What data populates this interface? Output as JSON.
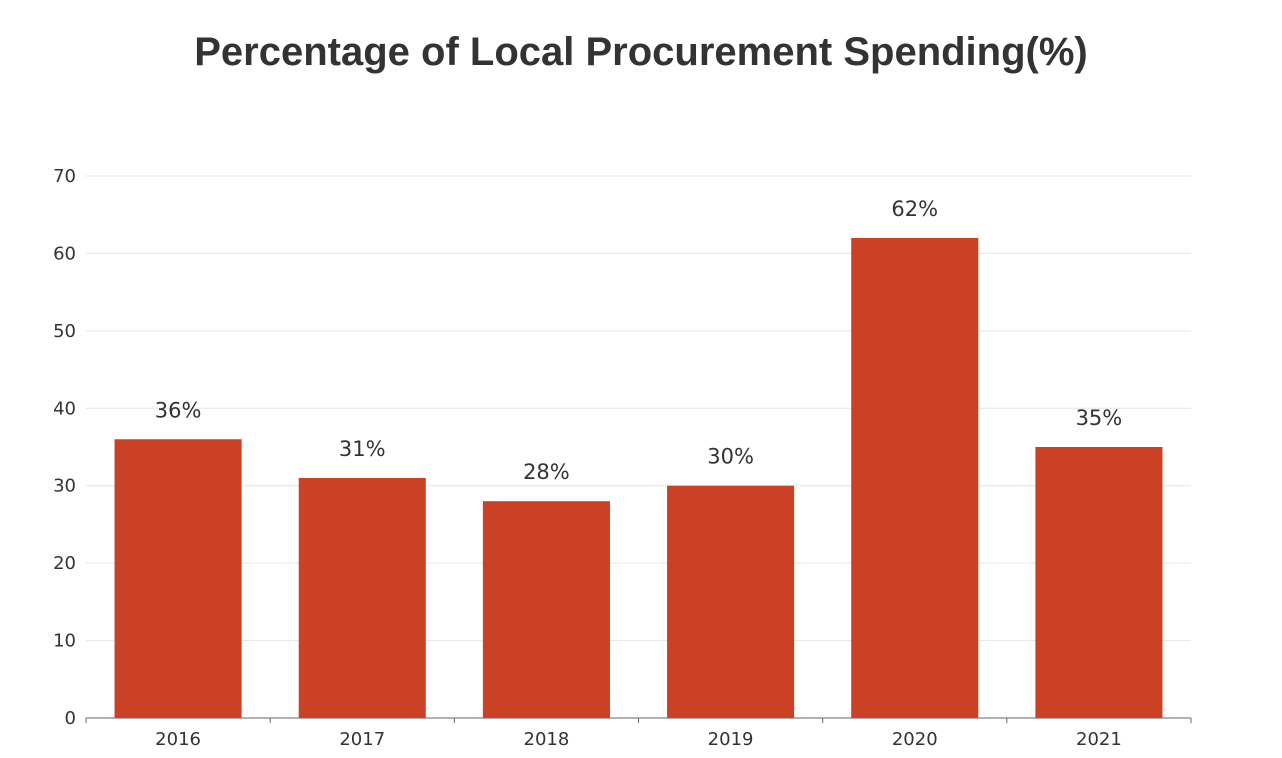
{
  "chart_data": {
    "type": "bar",
    "title": "Percentage of Local Procurement Spending(%)",
    "categories": [
      "2016",
      "2017",
      "2018",
      "2019",
      "2020",
      "2021"
    ],
    "values": [
      36,
      31,
      28,
      30,
      62,
      35
    ],
    "data_labels": [
      "36%",
      "31%",
      "28%",
      "30%",
      "62%",
      "35%"
    ],
    "ylim": [
      0,
      70
    ],
    "yticks": [
      0,
      10,
      20,
      30,
      40,
      50,
      60,
      70
    ],
    "grid": true,
    "legend": "none",
    "colors": {
      "bar": "#cb4125",
      "grid": "#e6e6e6",
      "axis": "#666666",
      "text": "#333333"
    }
  }
}
